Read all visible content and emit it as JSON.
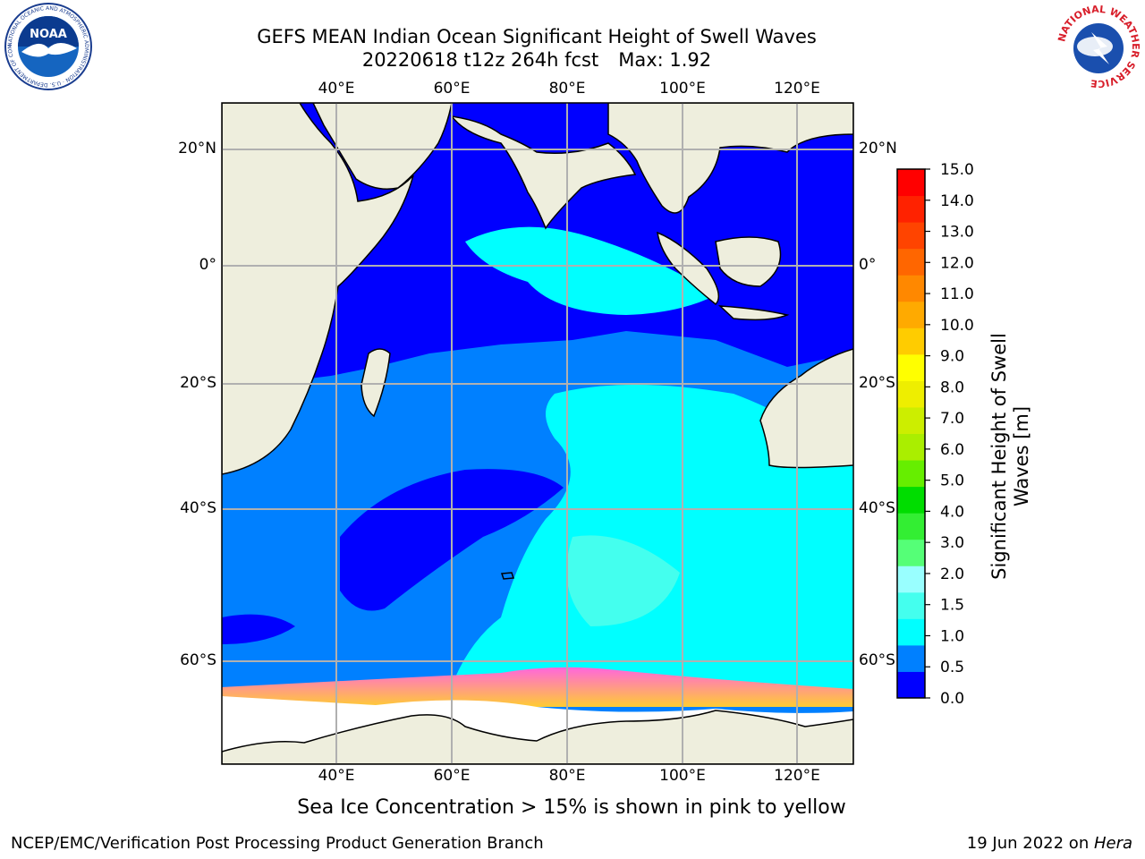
{
  "header": {
    "title_line1": "GEFS MEAN Indian Ocean Significant Height of Swell Waves",
    "title_run": "20220618 t12z 264h fcst",
    "title_max": "Max: 1.92"
  },
  "logos": {
    "noaa": {
      "text": "NOAA",
      "ring_text": "NATIONAL OCEANIC AND ATMOSPHERIC ADMINISTRATION · U.S. DEPARTMENT OF COMMERCE"
    },
    "nws": {
      "ring_text": "NATIONAL WEATHER SERVICE"
    }
  },
  "map": {
    "lon_ticks": [
      "40°E",
      "60°E",
      "80°E",
      "100°E",
      "120°E"
    ],
    "lat_ticks": [
      "20°N",
      "0°",
      "20°S",
      "40°S",
      "60°S"
    ],
    "colors": {
      "land": "#eeeedd",
      "ocean_deep": "#0000ff",
      "ocean_mid": "#0080ff",
      "ocean_light": "#00ffff",
      "ocean_pale": "#44ffee",
      "ice_pink": "#ff66dd",
      "ice_yellow": "#ffcc33",
      "grid": "#b0b0b0"
    }
  },
  "colorbar": {
    "label": "Significant Height of Swell Waves [m]",
    "ticks": [
      "15.0",
      "14.0",
      "13.0",
      "12.0",
      "11.0",
      "10.0",
      "9.0",
      "8.0",
      "7.0",
      "6.0",
      "5.0",
      "4.0",
      "3.0",
      "2.0",
      "1.5",
      "1.0",
      "0.5",
      "0.0"
    ],
    "colors": [
      "#0000ff",
      "#0080ff",
      "#00ffff",
      "#44ffee",
      "#99ffff",
      "#55ff77",
      "#33ee33",
      "#00dd00",
      "#66ee00",
      "#aaee00",
      "#ccee00",
      "#eeee00",
      "#ffff00",
      "#ffcc00",
      "#ffaa00",
      "#ff8800",
      "#ff6600",
      "#ff4400",
      "#ff2200",
      "#ff0000"
    ]
  },
  "caption": "Sea Ice Concentration > 15% is shown in pink to yellow",
  "footer": {
    "left": "NCEP/EMC/Verification Post Processing Product Generation Branch",
    "right_date": "19 Jun 2022 on ",
    "right_host": "Hera"
  }
}
